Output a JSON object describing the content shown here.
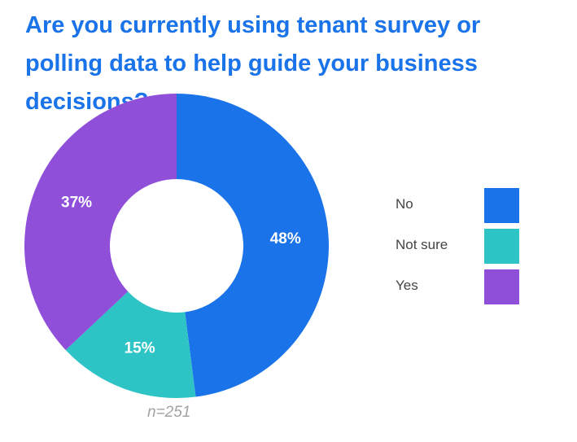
{
  "chart_data": {
    "type": "pie",
    "title": "Are you currently using tenant survey or polling data to help guide your business decisions?",
    "note": "n=251",
    "legend_position": "right",
    "slices": [
      {
        "name": "No",
        "value": 48,
        "label": "48%",
        "color": "#1a73e8"
      },
      {
        "name": "Not sure",
        "value": 15,
        "label": "15%",
        "color": "#2ec4c6"
      },
      {
        "name": "Yes",
        "value": 37,
        "label": "37%",
        "color": "#8f4fd9"
      }
    ]
  }
}
